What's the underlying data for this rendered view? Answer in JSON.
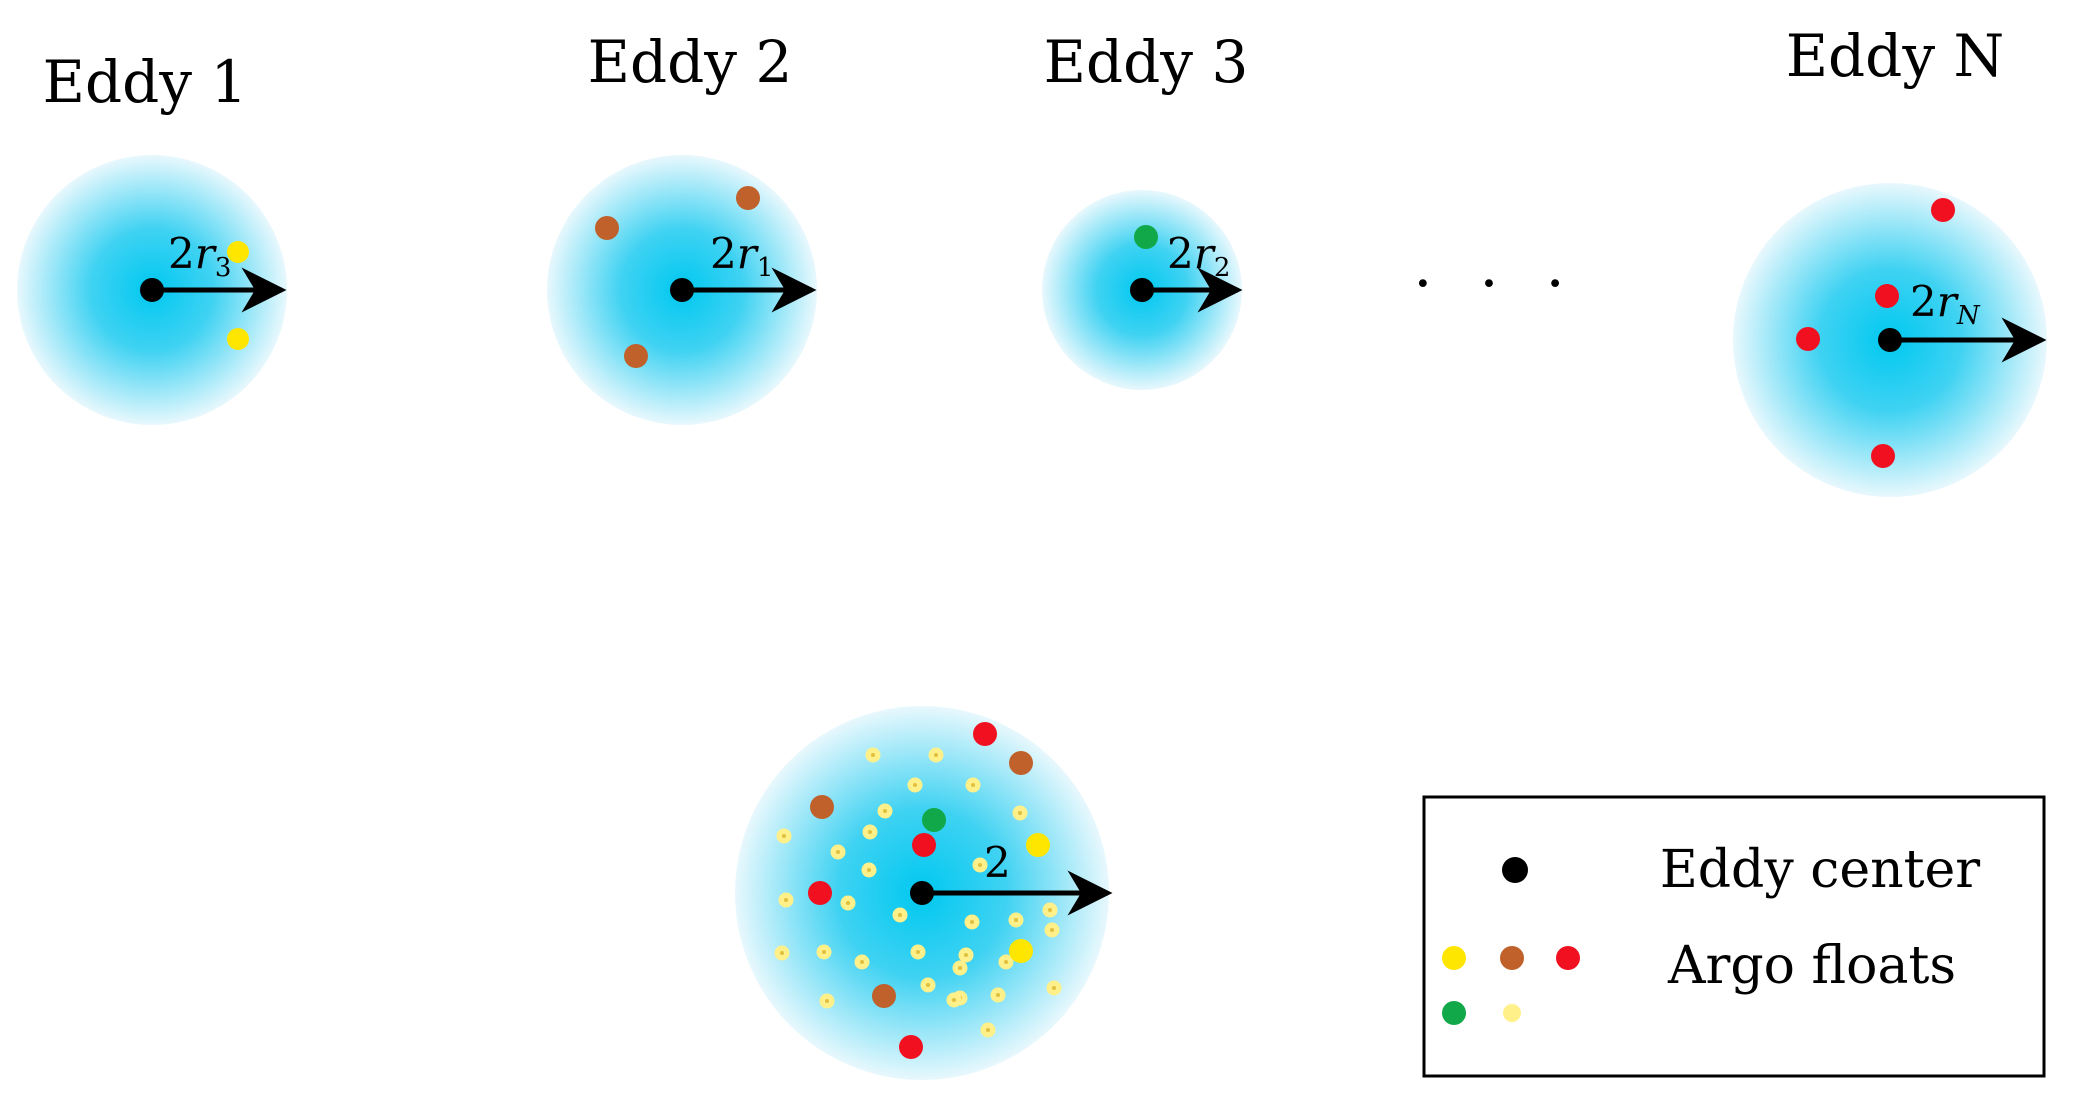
{
  "colors": {
    "eddy_core": "#00c8f0",
    "eddy_edge": "#e8f8fd",
    "arrow": "#000000",
    "yellow": "#ffe600",
    "brown": "#c0602a",
    "red": "#f01020",
    "green": "#10a848",
    "pale_yellow": "#fff08a"
  },
  "eddies": [
    {
      "id": "1",
      "title": "Eddy 1",
      "radius_label": "2",
      "radius_var": "r",
      "radius_sub": "3",
      "floats": [
        "yellow",
        "yellow"
      ]
    },
    {
      "id": "2",
      "title": "Eddy 2",
      "radius_label": "2",
      "radius_var": "r",
      "radius_sub": "1",
      "floats": [
        "brown",
        "brown",
        "brown"
      ]
    },
    {
      "id": "3",
      "title": "Eddy 3",
      "radius_label": "2",
      "radius_var": "r",
      "radius_sub": "2",
      "floats": [
        "green"
      ]
    },
    {
      "id": "N",
      "title": "Eddy N",
      "radius_label": "2",
      "radius_var": "r",
      "radius_sub": "N",
      "floats": [
        "red",
        "red",
        "red",
        "red"
      ]
    }
  ],
  "ellipsis": "· · ·",
  "composite": {
    "radius_label": "2",
    "floats": [
      "red",
      "brown",
      "brown",
      "green",
      "red",
      "yellow",
      "red",
      "yellow",
      "brown",
      "red"
    ]
  },
  "legend": {
    "center_label": "Eddy center",
    "floats_label": "Argo floats",
    "float_colors": [
      "yellow",
      "brown",
      "red",
      "green",
      "pale_yellow"
    ]
  }
}
